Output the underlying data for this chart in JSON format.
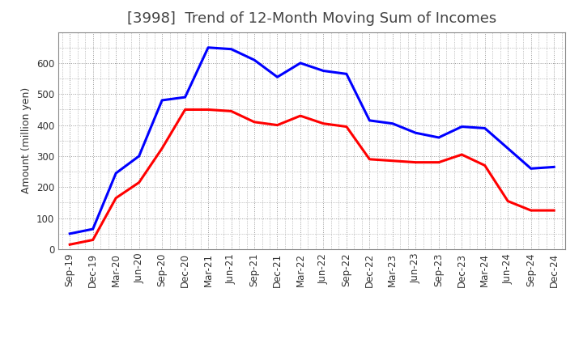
{
  "title": "[3998]  Trend of 12-Month Moving Sum of Incomes",
  "ylabel": "Amount (million yen)",
  "xlabels": [
    "Sep-19",
    "Dec-19",
    "Mar-20",
    "Jun-20",
    "Sep-20",
    "Dec-20",
    "Mar-21",
    "Jun-21",
    "Sep-21",
    "Dec-21",
    "Mar-22",
    "Jun-22",
    "Sep-22",
    "Dec-22",
    "Mar-23",
    "Jun-23",
    "Sep-23",
    "Dec-23",
    "Mar-24",
    "Jun-24",
    "Sep-24",
    "Dec-24"
  ],
  "ordinary_income": [
    50,
    65,
    245,
    300,
    480,
    490,
    650,
    645,
    610,
    555,
    600,
    575,
    565,
    415,
    405,
    375,
    360,
    395,
    390,
    325,
    260,
    265
  ],
  "net_income": [
    15,
    30,
    165,
    215,
    325,
    450,
    450,
    445,
    410,
    400,
    430,
    405,
    395,
    290,
    285,
    280,
    280,
    305,
    270,
    155,
    125,
    125
  ],
  "ylim": [
    0,
    700
  ],
  "yticks": [
    0,
    100,
    200,
    300,
    400,
    500,
    600
  ],
  "ordinary_color": "#0000FF",
  "net_color": "#FF0000",
  "background_color": "#FFFFFF",
  "grid_color": "#999999",
  "title_fontsize": 13,
  "title_color": "#444444",
  "label_fontsize": 9,
  "tick_fontsize": 8.5,
  "legend_fontsize": 10
}
